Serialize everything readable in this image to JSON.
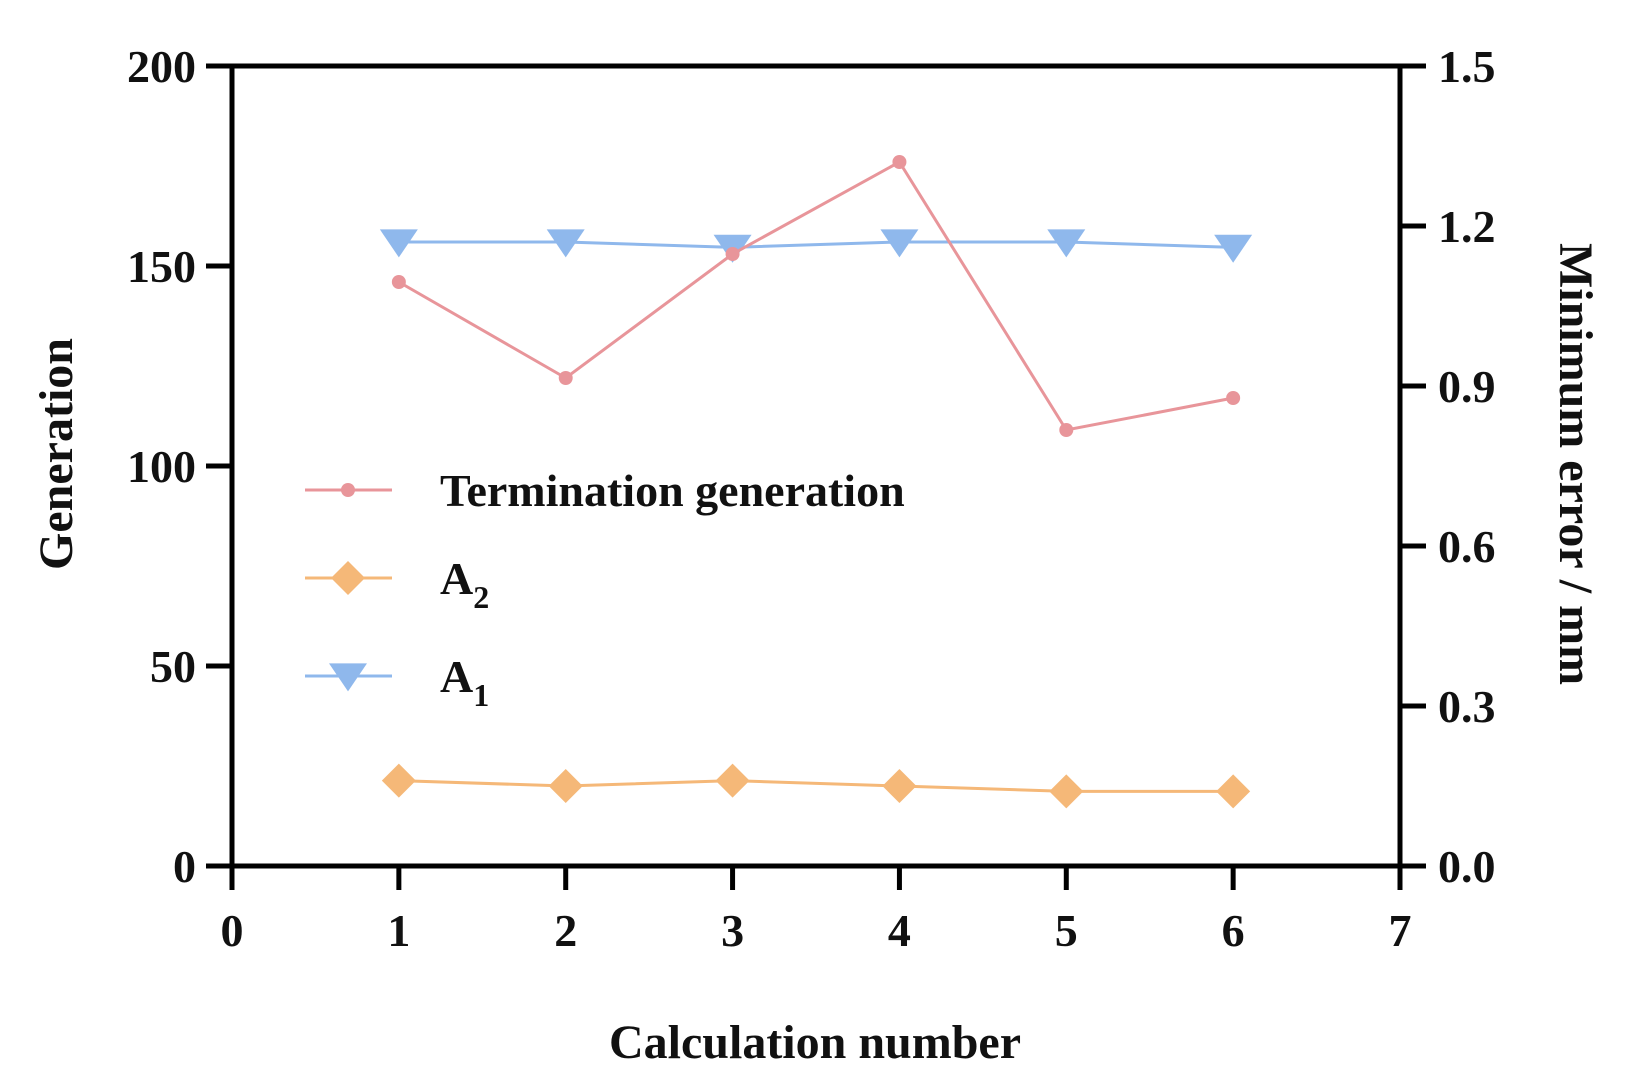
{
  "chart_data": {
    "type": "line",
    "title": "",
    "xlabel": "Calculation number",
    "ylabel_left": "Generation",
    "ylabel_right": "Minimum error / mm",
    "xlim": [
      0,
      7
    ],
    "ylim_left": [
      0,
      200
    ],
    "ylim_right": [
      0.0,
      1.5
    ],
    "x_ticks": [
      "0",
      "1",
      "2",
      "3",
      "4",
      "5",
      "6",
      "7"
    ],
    "y_left_ticks": [
      "0",
      "50",
      "100",
      "150",
      "200"
    ],
    "y_right_ticks": [
      "0.0",
      "0.3",
      "0.6",
      "0.9",
      "1.2",
      "1.5"
    ],
    "grid": false,
    "legend_position": "center-left",
    "x": [
      1,
      2,
      3,
      4,
      5,
      6
    ],
    "series": [
      {
        "name": "Termination generation",
        "axis": "left",
        "marker": "circle",
        "color": "#e8959a",
        "values": [
          146,
          122,
          153,
          176,
          109,
          117
        ]
      },
      {
        "name": "A",
        "subscript": "2",
        "axis": "right",
        "marker": "diamond",
        "color": "#f5b878",
        "values": [
          0.16,
          0.15,
          0.16,
          0.15,
          0.14,
          0.14
        ]
      },
      {
        "name": "A",
        "subscript": "1",
        "axis": "right",
        "marker": "triangle-down",
        "color": "#8fb8ec",
        "values": [
          1.17,
          1.17,
          1.16,
          1.17,
          1.17,
          1.16
        ]
      }
    ]
  }
}
